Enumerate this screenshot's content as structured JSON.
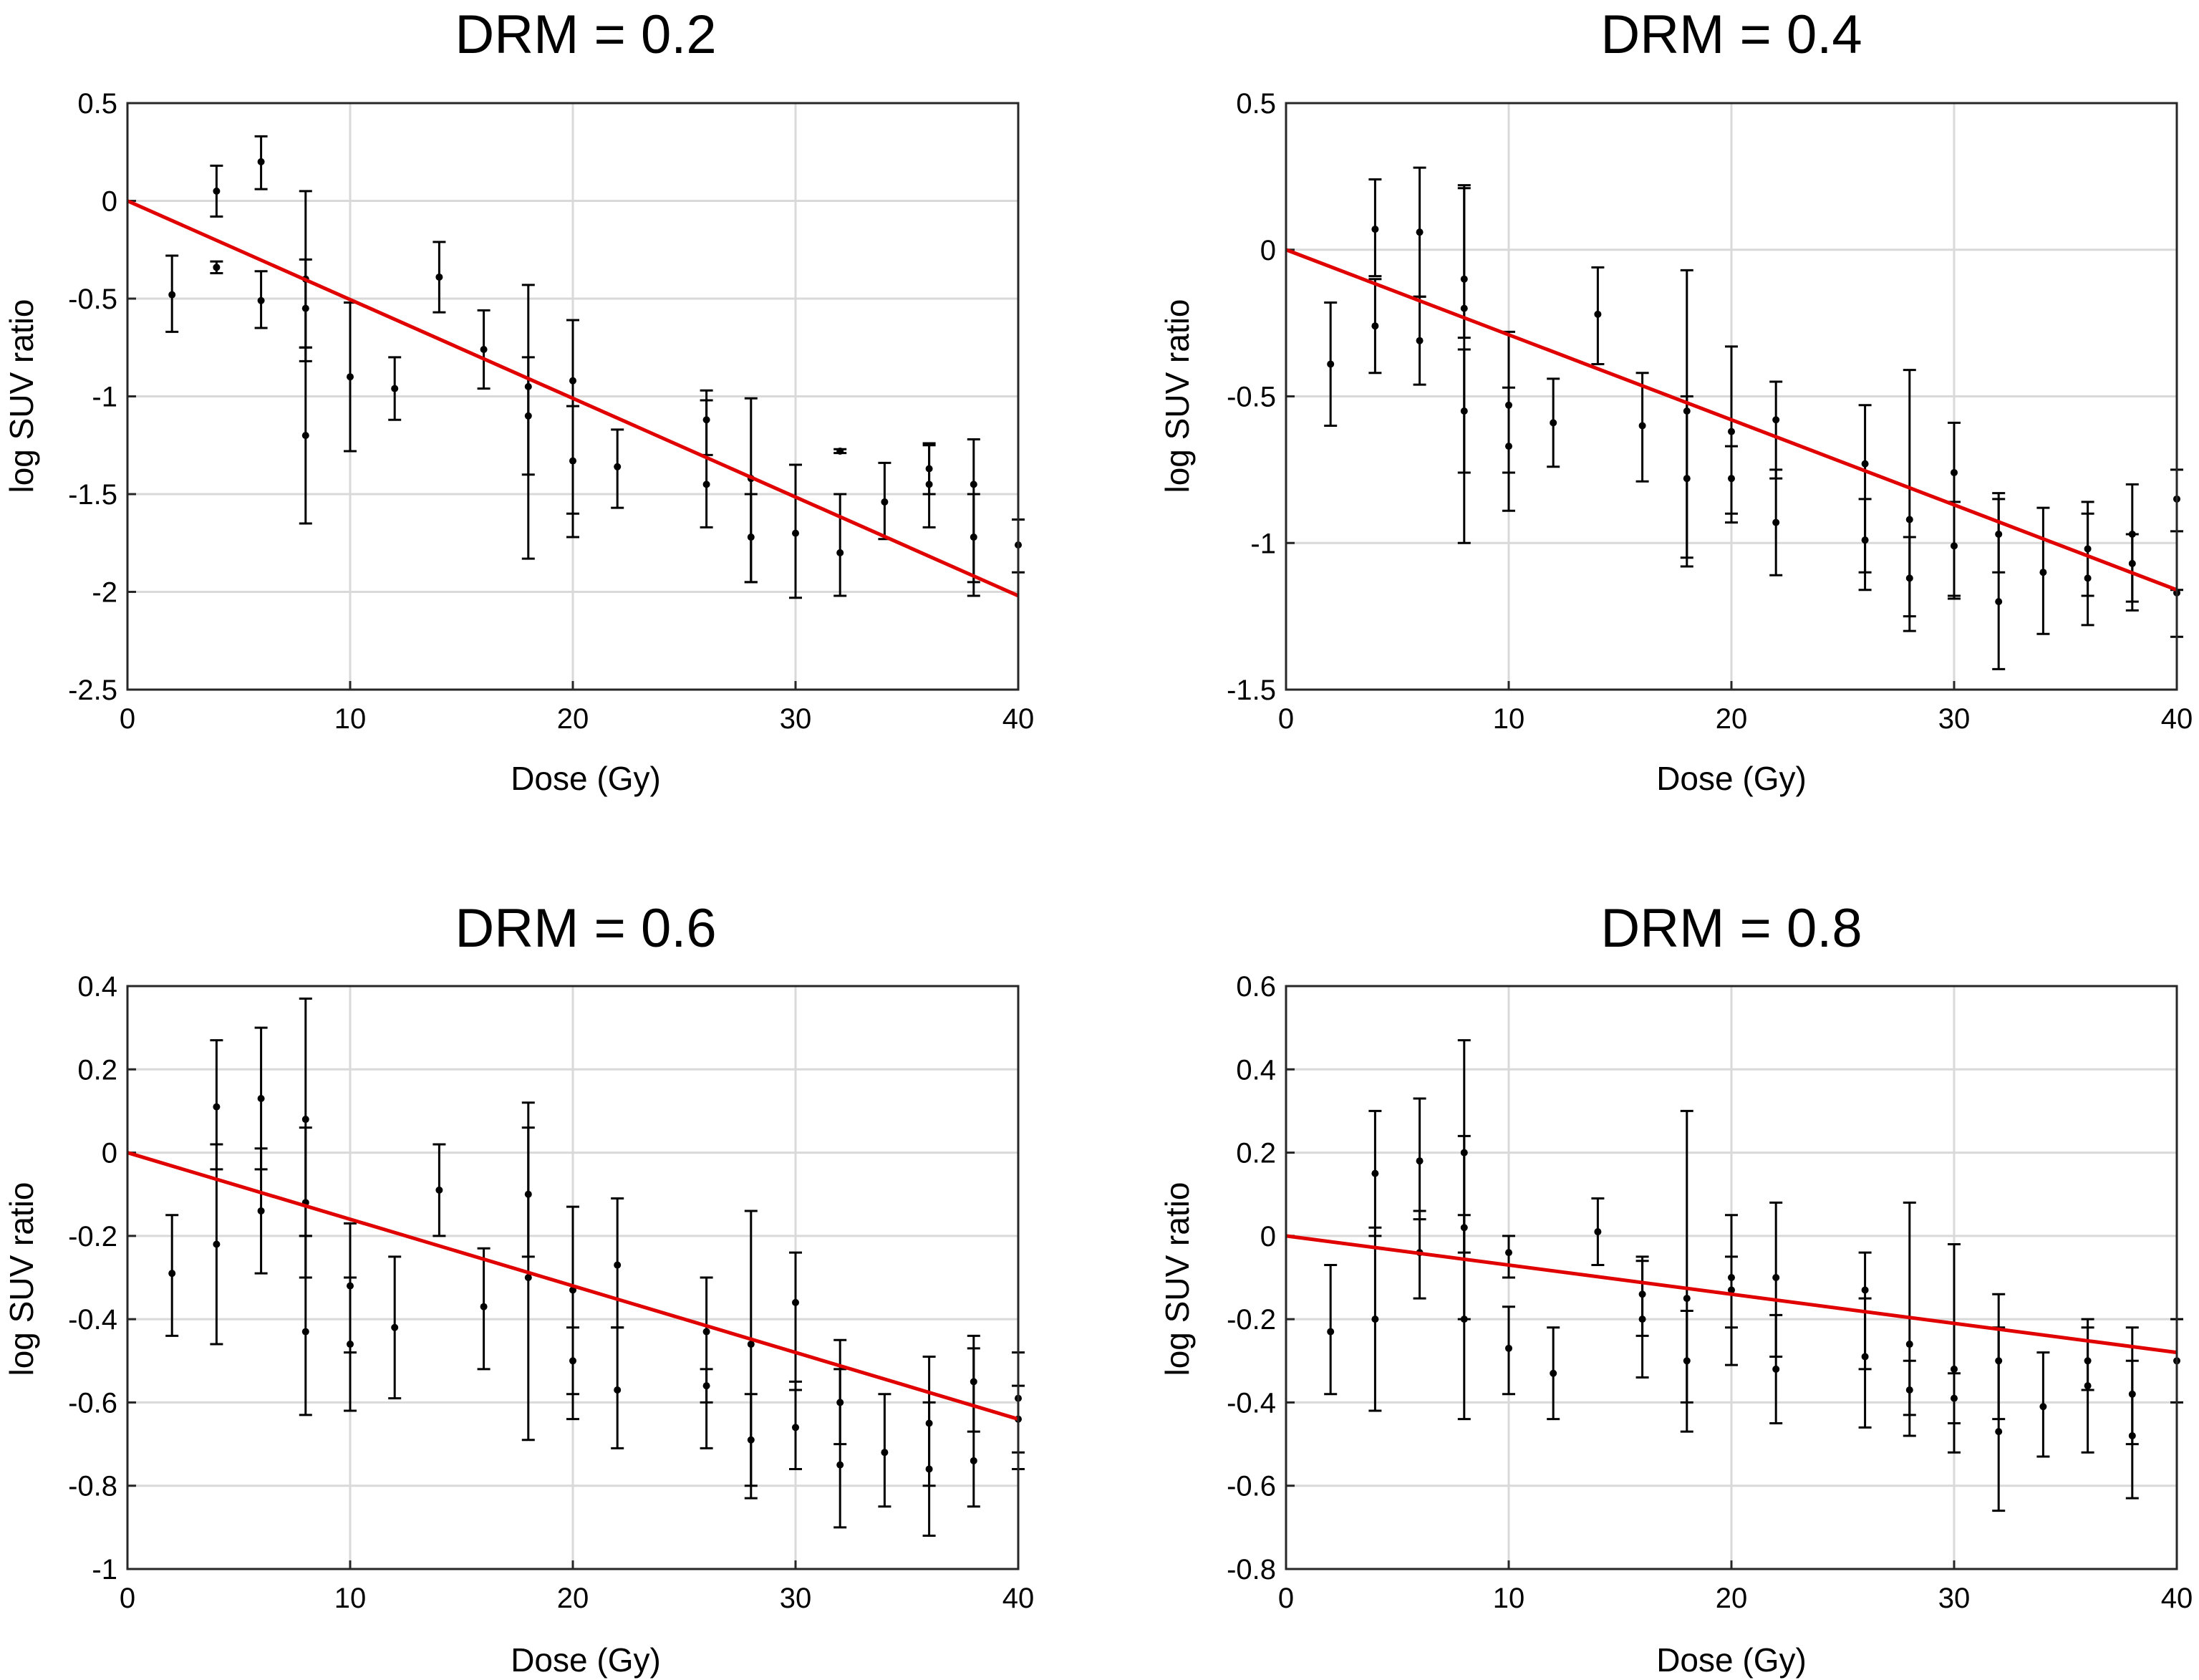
{
  "chart_data": [
    {
      "type": "scatter",
      "title": "DRM = 0.2",
      "xlabel": "Dose (Gy)",
      "ylabel": "log SUV ratio",
      "xlim": [
        0,
        40
      ],
      "ylim": [
        -2.5,
        0.5
      ],
      "xticks": [
        "0",
        "10",
        "20",
        "30",
        "40"
      ],
      "yticks": [
        "-2.5",
        "-2",
        "-1.5",
        "-1",
        "-0.5",
        "0",
        "0.5"
      ],
      "grid": true,
      "fit_line": {
        "x": [
          0,
          40
        ],
        "y": [
          0,
          -2.02
        ],
        "color": "#e00000"
      },
      "points": [
        {
          "x": 2,
          "y": -0.48,
          "lo": -0.67,
          "hi": -0.28
        },
        {
          "x": 4,
          "y": 0.05,
          "lo": -0.08,
          "hi": 0.18
        },
        {
          "x": 4,
          "y": -0.34,
          "lo": -0.37,
          "hi": -0.31
        },
        {
          "x": 6,
          "y": 0.2,
          "lo": 0.06,
          "hi": 0.33
        },
        {
          "x": 6,
          "y": -0.51,
          "lo": -0.65,
          "hi": -0.36
        },
        {
          "x": 8,
          "y": -0.4,
          "lo": -0.82,
          "hi": 0.05
        },
        {
          "x": 8,
          "y": -1.2,
          "lo": -1.65,
          "hi": -0.75
        },
        {
          "x": 8,
          "y": -0.55,
          "lo": -0.75,
          "hi": -0.3
        },
        {
          "x": 10,
          "y": -0.9,
          "lo": -1.28,
          "hi": -0.52
        },
        {
          "x": 12,
          "y": -0.96,
          "lo": -1.12,
          "hi": -0.8
        },
        {
          "x": 14,
          "y": -0.39,
          "lo": -0.57,
          "hi": -0.21
        },
        {
          "x": 16,
          "y": -0.76,
          "lo": -0.96,
          "hi": -0.56
        },
        {
          "x": 18,
          "y": -0.95,
          "lo": -1.83,
          "hi": -0.43
        },
        {
          "x": 18,
          "y": -1.1,
          "lo": -1.4,
          "hi": -0.8
        },
        {
          "x": 20,
          "y": -0.92,
          "lo": -1.72,
          "hi": -0.61
        },
        {
          "x": 20,
          "y": -1.33,
          "lo": -1.6,
          "hi": -1.05
        },
        {
          "x": 22,
          "y": -1.36,
          "lo": -1.57,
          "hi": -1.17
        },
        {
          "x": 26,
          "y": -1.45,
          "lo": -1.67,
          "hi": -0.97
        },
        {
          "x": 26,
          "y": -1.12,
          "lo": -1.3,
          "hi": -1.02
        },
        {
          "x": 28,
          "y": -1.42,
          "lo": -1.95,
          "hi": -1.01
        },
        {
          "x": 28,
          "y": -1.72,
          "lo": -1.95,
          "hi": -1.5
        },
        {
          "x": 30,
          "y": -1.7,
          "lo": -2.03,
          "hi": -1.35
        },
        {
          "x": 32,
          "y": -1.8,
          "lo": -2.02,
          "hi": -1.5
        },
        {
          "x": 32,
          "y": -1.28,
          "lo": -1.29,
          "hi": -1.27
        },
        {
          "x": 34,
          "y": -1.54,
          "lo": -1.73,
          "hi": -1.34
        },
        {
          "x": 36,
          "y": -1.45,
          "lo": -1.67,
          "hi": -1.24
        },
        {
          "x": 36,
          "y": -1.37,
          "lo": -1.5,
          "hi": -1.25
        },
        {
          "x": 38,
          "y": -1.45,
          "lo": -2.02,
          "hi": -1.22
        },
        {
          "x": 38,
          "y": -1.72,
          "lo": -1.95,
          "hi": -1.5
        },
        {
          "x": 40,
          "y": -1.76,
          "lo": -1.9,
          "hi": -1.63
        }
      ]
    },
    {
      "type": "scatter",
      "title": "DRM = 0.4",
      "xlabel": "Dose (Gy)",
      "ylabel": "log SUV ratio",
      "xlim": [
        0,
        40
      ],
      "ylim": [
        -1.5,
        0.5
      ],
      "xticks": [
        "0",
        "10",
        "20",
        "30",
        "40"
      ],
      "yticks": [
        "-1.5",
        "-1",
        "-0.5",
        "0",
        "0.5"
      ],
      "grid": true,
      "fit_line": {
        "x": [
          0,
          40
        ],
        "y": [
          0,
          -1.16
        ],
        "color": "#e00000"
      },
      "points": [
        {
          "x": 2,
          "y": -0.39,
          "lo": -0.6,
          "hi": -0.18
        },
        {
          "x": 4,
          "y": 0.07,
          "lo": -0.09,
          "hi": 0.24
        },
        {
          "x": 4,
          "y": -0.26,
          "lo": -0.42,
          "hi": -0.1
        },
        {
          "x": 6,
          "y": 0.06,
          "lo": -0.16,
          "hi": 0.28
        },
        {
          "x": 6,
          "y": -0.31,
          "lo": -0.46,
          "hi": -0.16
        },
        {
          "x": 8,
          "y": -0.2,
          "lo": -1.0,
          "hi": 0.22
        },
        {
          "x": 8,
          "y": -0.55,
          "lo": -0.76,
          "hi": -0.34
        },
        {
          "x": 8,
          "y": -0.1,
          "lo": -0.3,
          "hi": 0.21
        },
        {
          "x": 10,
          "y": -0.53,
          "lo": -0.76,
          "hi": -0.28
        },
        {
          "x": 10,
          "y": -0.67,
          "lo": -0.89,
          "hi": -0.47
        },
        {
          "x": 12,
          "y": -0.59,
          "lo": -0.74,
          "hi": -0.44
        },
        {
          "x": 14,
          "y": -0.22,
          "lo": -0.39,
          "hi": -0.06
        },
        {
          "x": 16,
          "y": -0.6,
          "lo": -0.79,
          "hi": -0.42
        },
        {
          "x": 18,
          "y": -0.55,
          "lo": -1.08,
          "hi": -0.07
        },
        {
          "x": 18,
          "y": -0.78,
          "lo": -1.05,
          "hi": -0.5
        },
        {
          "x": 20,
          "y": -0.62,
          "lo": -0.93,
          "hi": -0.33
        },
        {
          "x": 20,
          "y": -0.78,
          "lo": -0.9,
          "hi": -0.67
        },
        {
          "x": 22,
          "y": -0.58,
          "lo": -0.78,
          "hi": -0.45
        },
        {
          "x": 22,
          "y": -0.93,
          "lo": -1.11,
          "hi": -0.75
        },
        {
          "x": 26,
          "y": -0.73,
          "lo": -1.16,
          "hi": -0.53
        },
        {
          "x": 26,
          "y": -0.99,
          "lo": -1.1,
          "hi": -0.85
        },
        {
          "x": 28,
          "y": -0.92,
          "lo": -1.3,
          "hi": -0.41
        },
        {
          "x": 28,
          "y": -1.12,
          "lo": -1.25,
          "hi": -0.98
        },
        {
          "x": 30,
          "y": -0.76,
          "lo": -1.19,
          "hi": -0.59
        },
        {
          "x": 30,
          "y": -1.01,
          "lo": -1.18,
          "hi": -0.86
        },
        {
          "x": 32,
          "y": -1.2,
          "lo": -1.43,
          "hi": -0.83
        },
        {
          "x": 32,
          "y": -0.97,
          "lo": -1.1,
          "hi": -0.85
        },
        {
          "x": 34,
          "y": -1.1,
          "lo": -1.31,
          "hi": -0.88
        },
        {
          "x": 36,
          "y": -1.12,
          "lo": -1.28,
          "hi": -0.86
        },
        {
          "x": 36,
          "y": -1.02,
          "lo": -1.18,
          "hi": -0.9
        },
        {
          "x": 38,
          "y": -0.97,
          "lo": -1.23,
          "hi": -0.8
        },
        {
          "x": 38,
          "y": -1.07,
          "lo": -1.2,
          "hi": -0.97
        },
        {
          "x": 40,
          "y": -0.85,
          "lo": -1.16,
          "hi": -0.75
        },
        {
          "x": 40,
          "y": -1.17,
          "lo": -1.32,
          "hi": -0.96
        }
      ]
    },
    {
      "type": "scatter",
      "title": "DRM = 0.6",
      "xlabel": "Dose (Gy)",
      "ylabel": "log SUV ratio",
      "xlim": [
        0,
        40
      ],
      "ylim": [
        -1,
        0.4
      ],
      "xticks": [
        "0",
        "10",
        "20",
        "30",
        "40"
      ],
      "yticks": [
        "-1",
        "-0.8",
        "-0.6",
        "-0.4",
        "-0.2",
        "0",
        "0.2",
        "0.4"
      ],
      "grid": true,
      "fit_line": {
        "x": [
          0,
          40
        ],
        "y": [
          0,
          -0.64
        ],
        "color": "#e00000"
      },
      "points": [
        {
          "x": 2,
          "y": -0.29,
          "lo": -0.44,
          "hi": -0.15
        },
        {
          "x": 4,
          "y": 0.11,
          "lo": -0.04,
          "hi": 0.27
        },
        {
          "x": 4,
          "y": -0.22,
          "lo": -0.46,
          "hi": 0.02
        },
        {
          "x": 6,
          "y": 0.13,
          "lo": -0.04,
          "hi": 0.3
        },
        {
          "x": 6,
          "y": -0.14,
          "lo": -0.29,
          "hi": 0.01
        },
        {
          "x": 8,
          "y": 0.08,
          "lo": -0.2,
          "hi": 0.37
        },
        {
          "x": 8,
          "y": -0.43,
          "lo": -0.63,
          "hi": -0.2
        },
        {
          "x": 8,
          "y": -0.12,
          "lo": -0.3,
          "hi": 0.06
        },
        {
          "x": 10,
          "y": -0.46,
          "lo": -0.62,
          "hi": -0.3
        },
        {
          "x": 10,
          "y": -0.32,
          "lo": -0.48,
          "hi": -0.17
        },
        {
          "x": 12,
          "y": -0.42,
          "lo": -0.59,
          "hi": -0.25
        },
        {
          "x": 14,
          "y": -0.09,
          "lo": -0.2,
          "hi": 0.02
        },
        {
          "x": 16,
          "y": -0.37,
          "lo": -0.52,
          "hi": -0.23
        },
        {
          "x": 18,
          "y": -0.3,
          "lo": -0.69,
          "hi": 0.12
        },
        {
          "x": 18,
          "y": -0.1,
          "lo": -0.25,
          "hi": 0.06
        },
        {
          "x": 20,
          "y": -0.33,
          "lo": -0.64,
          "hi": -0.13
        },
        {
          "x": 20,
          "y": -0.5,
          "lo": -0.58,
          "hi": -0.42
        },
        {
          "x": 22,
          "y": -0.57,
          "lo": -0.71,
          "hi": -0.42
        },
        {
          "x": 22,
          "y": -0.27,
          "lo": -0.42,
          "hi": -0.11
        },
        {
          "x": 26,
          "y": -0.43,
          "lo": -0.71,
          "hi": -0.3
        },
        {
          "x": 26,
          "y": -0.56,
          "lo": -0.6,
          "hi": -0.52
        },
        {
          "x": 28,
          "y": -0.46,
          "lo": -0.83,
          "hi": -0.14
        },
        {
          "x": 28,
          "y": -0.69,
          "lo": -0.8,
          "hi": -0.58
        },
        {
          "x": 30,
          "y": -0.36,
          "lo": -0.57,
          "hi": -0.24
        },
        {
          "x": 30,
          "y": -0.66,
          "lo": -0.76,
          "hi": -0.55
        },
        {
          "x": 32,
          "y": -0.75,
          "lo": -0.9,
          "hi": -0.45
        },
        {
          "x": 32,
          "y": -0.6,
          "lo": -0.7,
          "hi": -0.52
        },
        {
          "x": 34,
          "y": -0.72,
          "lo": -0.85,
          "hi": -0.58
        },
        {
          "x": 36,
          "y": -0.76,
          "lo": -0.92,
          "hi": -0.6
        },
        {
          "x": 36,
          "y": -0.65,
          "lo": -0.8,
          "hi": -0.49
        },
        {
          "x": 38,
          "y": -0.74,
          "lo": -0.85,
          "hi": -0.44
        },
        {
          "x": 38,
          "y": -0.55,
          "lo": -0.67,
          "hi": -0.47
        },
        {
          "x": 40,
          "y": -0.59,
          "lo": -0.76,
          "hi": -0.48
        },
        {
          "x": 40,
          "y": -0.64,
          "lo": -0.72,
          "hi": -0.56
        }
      ]
    },
    {
      "type": "scatter",
      "title": "DRM = 0.8",
      "xlabel": "Dose (Gy)",
      "ylabel": "log SUV ratio",
      "xlim": [
        0,
        40
      ],
      "ylim": [
        -0.8,
        0.6
      ],
      "xticks": [
        "0",
        "10",
        "20",
        "30",
        "40"
      ],
      "yticks": [
        "-0.8",
        "-0.6",
        "-0.4",
        "-0.2",
        "0",
        "0.2",
        "0.4",
        "0.6"
      ],
      "grid": true,
      "fit_line": {
        "x": [
          0,
          40
        ],
        "y": [
          0,
          -0.28
        ],
        "color": "#e00000"
      },
      "points": [
        {
          "x": 2,
          "y": -0.23,
          "lo": -0.38,
          "hi": -0.07
        },
        {
          "x": 4,
          "y": 0.15,
          "lo": 0.0,
          "hi": 0.3
        },
        {
          "x": 4,
          "y": -0.2,
          "lo": -0.42,
          "hi": 0.02
        },
        {
          "x": 6,
          "y": 0.18,
          "lo": 0.04,
          "hi": 0.33
        },
        {
          "x": 6,
          "y": -0.04,
          "lo": -0.15,
          "hi": 0.06
        },
        {
          "x": 8,
          "y": 0.2,
          "lo": -0.04,
          "hi": 0.47
        },
        {
          "x": 8,
          "y": -0.2,
          "lo": -0.44,
          "hi": 0.05
        },
        {
          "x": 8,
          "y": 0.02,
          "lo": -0.2,
          "hi": 0.24
        },
        {
          "x": 10,
          "y": -0.27,
          "lo": -0.38,
          "hi": -0.17
        },
        {
          "x": 10,
          "y": -0.04,
          "lo": -0.1,
          "hi": 0.0
        },
        {
          "x": 12,
          "y": -0.33,
          "lo": -0.44,
          "hi": -0.22
        },
        {
          "x": 14,
          "y": 0.01,
          "lo": -0.07,
          "hi": 0.09
        },
        {
          "x": 16,
          "y": -0.2,
          "lo": -0.34,
          "hi": -0.06
        },
        {
          "x": 16,
          "y": -0.14,
          "lo": -0.24,
          "hi": -0.05
        },
        {
          "x": 18,
          "y": -0.15,
          "lo": -0.47,
          "hi": 0.3
        },
        {
          "x": 18,
          "y": -0.3,
          "lo": -0.4,
          "hi": -0.18
        },
        {
          "x": 20,
          "y": -0.1,
          "lo": -0.31,
          "hi": 0.05
        },
        {
          "x": 20,
          "y": -0.13,
          "lo": -0.22,
          "hi": -0.05
        },
        {
          "x": 22,
          "y": -0.1,
          "lo": -0.29,
          "hi": 0.08
        },
        {
          "x": 22,
          "y": -0.32,
          "lo": -0.45,
          "hi": -0.19
        },
        {
          "x": 26,
          "y": -0.13,
          "lo": -0.32,
          "hi": -0.04
        },
        {
          "x": 26,
          "y": -0.29,
          "lo": -0.46,
          "hi": -0.15
        },
        {
          "x": 28,
          "y": -0.26,
          "lo": -0.48,
          "hi": 0.08
        },
        {
          "x": 28,
          "y": -0.37,
          "lo": -0.43,
          "hi": -0.3
        },
        {
          "x": 30,
          "y": -0.32,
          "lo": -0.52,
          "hi": -0.02
        },
        {
          "x": 30,
          "y": -0.39,
          "lo": -0.45,
          "hi": -0.33
        },
        {
          "x": 32,
          "y": -0.47,
          "lo": -0.66,
          "hi": -0.14
        },
        {
          "x": 32,
          "y": -0.3,
          "lo": -0.44,
          "hi": -0.22
        },
        {
          "x": 34,
          "y": -0.41,
          "lo": -0.53,
          "hi": -0.28
        },
        {
          "x": 36,
          "y": -0.36,
          "lo": -0.52,
          "hi": -0.2
        },
        {
          "x": 36,
          "y": -0.3,
          "lo": -0.37,
          "hi": -0.22
        },
        {
          "x": 38,
          "y": -0.48,
          "lo": -0.63,
          "hi": -0.22
        },
        {
          "x": 38,
          "y": -0.38,
          "lo": -0.5,
          "hi": -0.3
        },
        {
          "x": 40,
          "y": -0.3,
          "lo": -0.4,
          "hi": -0.2
        }
      ]
    }
  ]
}
